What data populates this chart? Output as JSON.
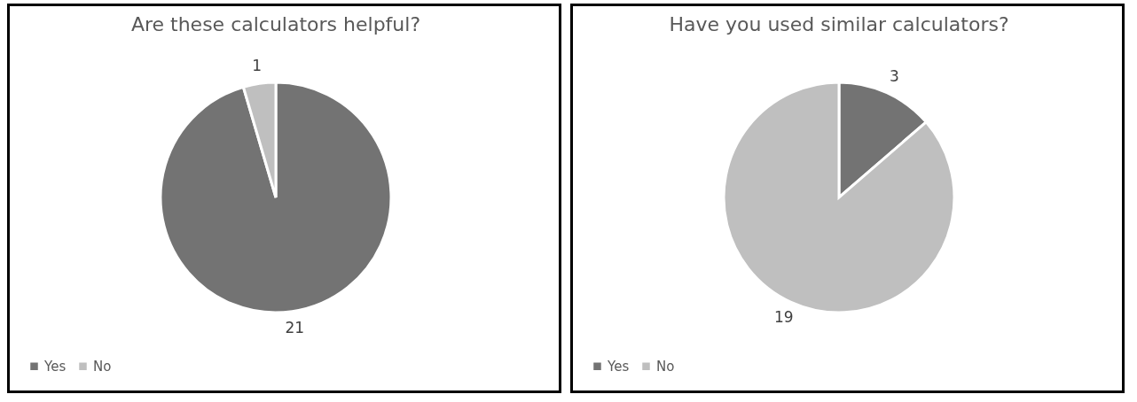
{
  "chart_data": [
    {
      "type": "pie",
      "title": "Are these calculators helpful?",
      "categories": [
        "Yes",
        "No"
      ],
      "values": [
        21,
        1
      ],
      "colors": [
        "#737373",
        "#bfbfbf"
      ],
      "data_labels": true,
      "legend": "bottom"
    },
    {
      "type": "pie",
      "title": "Have you used similar calculators?",
      "categories": [
        "Yes",
        "No"
      ],
      "values": [
        3,
        19
      ],
      "colors": [
        "#737373",
        "#bfbfbf"
      ],
      "data_labels": true,
      "legend": "bottom"
    }
  ]
}
